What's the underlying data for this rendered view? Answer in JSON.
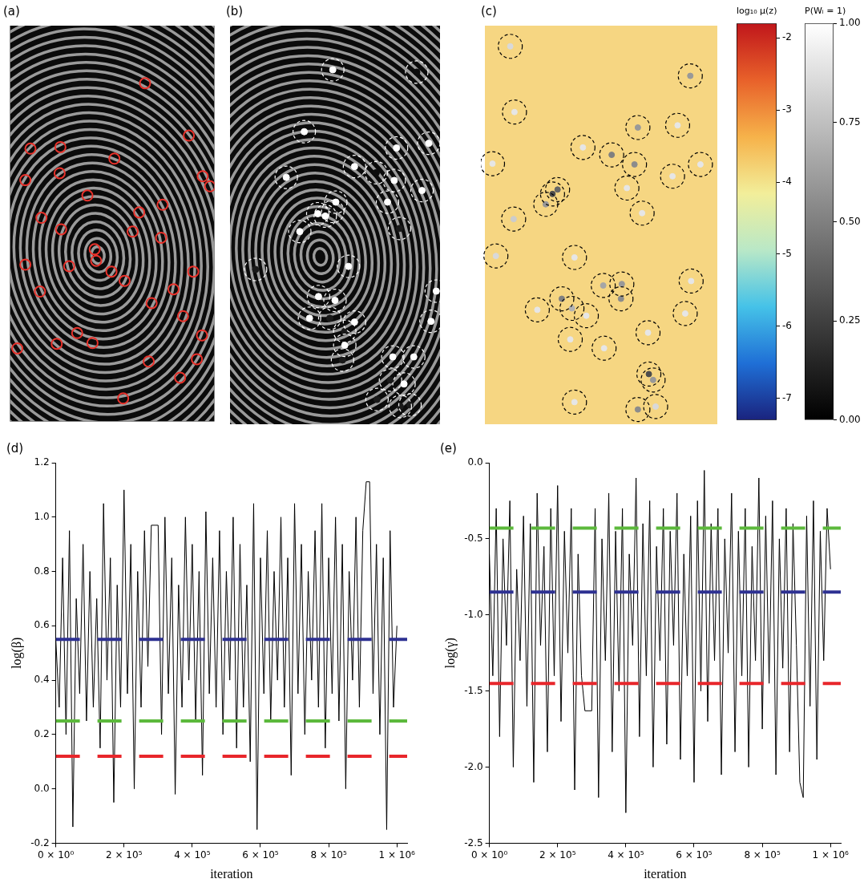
{
  "chart_data": [
    {
      "type": "scatter",
      "title": "(a)",
      "tick_labels": false,
      "grid": false,
      "xlim": [
        0,
        280
      ],
      "ylim": [
        515,
        0
      ],
      "series": [
        {
          "color": "#e8312a",
          "marker": "ring",
          "x": [
            185,
            28,
            69,
            21,
            68,
            143,
            245,
            264,
            274,
            106,
            209,
            177,
            43,
            70,
            168,
            207,
            116,
            118,
            21,
            81,
            139,
            251,
            157,
            41,
            224,
            194,
            237,
            10,
            64,
            92,
            113,
            190,
            263,
            256,
            233,
            155
          ],
          "values": [
            75,
            160,
            158,
            201,
            192,
            173,
            143,
            196,
            209,
            221,
            233,
            243,
            250,
            265,
            268,
            276,
            291,
            306,
            311,
            313,
            320,
            320,
            332,
            346,
            343,
            361,
            378,
            420,
            414,
            400,
            413,
            437,
            403,
            434,
            458,
            485
          ]
        }
      ]
    },
    {
      "type": "scatter",
      "title": "(b)",
      "tick_labels": false,
      "grid": false,
      "xlim": [
        0,
        280
      ],
      "ylim": [
        515,
        0
      ],
      "series": [
        {
          "color": "#ffffff",
          "marker": "dot",
          "x": [
            137,
            249,
            99,
            222,
            265,
            166,
            195,
            219,
            256,
            75,
            141,
            137,
            127,
            117,
            210,
            226,
            93,
            158,
            34,
            275,
            118,
            140,
            133,
            166,
            153,
            268,
            153,
            217,
            150,
            245,
            214,
            232,
            240,
            227,
            196,
            106
          ],
          "values": [
            57,
            60,
            137,
            158,
            152,
            182,
            190,
            200,
            213,
            196,
            228,
            240,
            246,
            243,
            228,
            262,
            266,
            311,
            315,
            343,
            350,
            355,
            378,
            383,
            395,
            382,
            413,
            428,
            432,
            428,
            458,
            463,
            490,
            492,
            483,
            378
          ],
          "p": [
            1,
            0.05,
            1,
            1,
            1,
            1,
            0.05,
            1,
            1,
            1,
            1,
            0.1,
            1,
            1,
            1,
            0.1,
            1,
            1,
            0.1,
            1,
            1,
            1,
            0.1,
            1,
            0.1,
            1,
            1,
            1,
            0.1,
            1,
            0.1,
            1,
            0.1,
            0.1,
            0.1,
            1
          ]
        }
      ]
    },
    {
      "type": "scatter",
      "title": "(c)",
      "tick_labels": false,
      "grid": false,
      "xlim": [
        0,
        275
      ],
      "ylim": [
        540,
        0
      ],
      "series": [
        {
          "color": "#000000",
          "marker": "dot",
          "x": [
            30,
            243,
            35,
            181,
            228,
            116,
            150,
            177,
            9,
            255,
            222,
            168,
            86,
            80,
            72,
            34,
            186,
            13,
            106,
            244,
            140,
            162,
            161,
            91,
            62,
            103,
            120,
            237,
            101,
            193,
            141,
            194,
            199,
            106,
            181,
            202
          ],
          "values": [
            28,
            68,
            117,
            138,
            135,
            165,
            175,
            188,
            187,
            188,
            204,
            220,
            222,
            228,
            242,
            262,
            254,
            312,
            314,
            346,
            352,
            350,
            370,
            370,
            385,
            383,
            393,
            390,
            425,
            416,
            437,
            472,
            480,
            510,
            520,
            516
          ],
          "p": [
            0.85,
            0.6,
            0.9,
            0.6,
            0.9,
            0.9,
            0.5,
            0.55,
            0.9,
            0.9,
            0.9,
            0.9,
            0.4,
            0.3,
            0.6,
            0.8,
            0.9,
            0.85,
            0.9,
            0.9,
            0.65,
            0.6,
            0.55,
            0.5,
            0.9,
            0.7,
            0.9,
            0.9,
            0.9,
            0.9,
            0.9,
            0.3,
            0.6,
            0.9,
            0.55,
            0.85
          ]
        }
      ]
    },
    {
      "type": "colorbar",
      "title": "log₁₀ μ(z)",
      "ylim": [
        -7.3,
        -1.8
      ],
      "yticks": [
        -7,
        -6,
        -5,
        -4,
        -3,
        -2
      ],
      "colors": [
        "#1a237e",
        "#1f6fd6",
        "#45c2e8",
        "#b9e8c7",
        "#f2ee9a",
        "#f6b24a",
        "#e8612a",
        "#c0161b"
      ]
    },
    {
      "type": "colorbar",
      "title": "P(Wᵢ = 1)",
      "ylim": [
        0,
        1
      ],
      "yticks": [
        {
          "value": 0,
          "label": "0.00"
        },
        {
          "value": 0.25,
          "label": "0.25"
        },
        {
          "value": 0.5,
          "label": "0.50"
        },
        {
          "value": 0.75,
          "label": "0.75"
        },
        {
          "value": 1,
          "label": "1.00"
        }
      ],
      "colors": [
        "#000000",
        "#ffffff"
      ]
    },
    {
      "type": "line",
      "title": "(d)",
      "x_label": "iteration",
      "y_label": "log(β)",
      "grid": false,
      "xlim": [
        0,
        1030000
      ],
      "xticks": [
        {
          "value": 0,
          "label": "0 × 10⁰"
        },
        {
          "value": 200000,
          "label": "2 × 10⁵"
        },
        {
          "value": 400000,
          "label": "4 × 10⁵"
        },
        {
          "value": 600000,
          "label": "6 × 10⁵"
        },
        {
          "value": 800000,
          "label": "8 × 10⁵"
        },
        {
          "value": 1000000,
          "label": "1 × 10⁶"
        }
      ],
      "ylim": [
        -0.2,
        1.2
      ],
      "yticks": [
        -0.2,
        {
          "value": 0,
          "label": "0.0"
        },
        0.2,
        0.4,
        0.6,
        0.8,
        {
          "value": 1,
          "label": "1.0"
        },
        1.2
      ],
      "x": [
        0,
        10000,
        20000,
        30000,
        40000,
        50000,
        60000,
        70000,
        80000,
        90000,
        100000,
        110000,
        120000,
        130000,
        140000,
        150000,
        160000,
        170000,
        180000,
        190000,
        200000,
        210000,
        220000,
        230000,
        240000,
        250000,
        260000,
        270000,
        280000,
        290000,
        300000,
        310000,
        320000,
        330000,
        340000,
        350000,
        360000,
        370000,
        380000,
        390000,
        400000,
        410000,
        420000,
        430000,
        440000,
        450000,
        460000,
        470000,
        480000,
        490000,
        500000,
        510000,
        520000,
        530000,
        540000,
        550000,
        560000,
        570000,
        580000,
        590000,
        600000,
        610000,
        620000,
        630000,
        640000,
        650000,
        660000,
        670000,
        680000,
        690000,
        700000,
        710000,
        720000,
        730000,
        740000,
        750000,
        760000,
        770000,
        780000,
        790000,
        800000,
        810000,
        820000,
        830000,
        840000,
        850000,
        860000,
        870000,
        880000,
        890000,
        900000,
        910000,
        920000,
        930000,
        940000,
        950000,
        960000,
        970000,
        980000,
        990000,
        1000000
      ],
      "series": [
        {
          "color": "#000000",
          "line_style": "solid",
          "values": [
            0.55,
            0.3,
            0.85,
            0.2,
            0.95,
            -0.14,
            0.7,
            0.35,
            0.9,
            0.25,
            0.8,
            0.3,
            0.7,
            0.15,
            1.05,
            0.4,
            0.85,
            -0.05,
            0.75,
            0.3,
            1.1,
            0.35,
            0.9,
            0.0,
            0.8,
            0.3,
            0.95,
            0.45,
            0.97,
            0.97,
            0.97,
            0.2,
            1.0,
            0.35,
            0.85,
            -0.02,
            0.75,
            0.3,
            1.0,
            0.4,
            0.9,
            0.25,
            0.8,
            0.05,
            1.02,
            0.35,
            0.85,
            0.3,
            0.95,
            0.2,
            0.8,
            0.4,
            1.0,
            0.15,
            0.9,
            0.3,
            0.75,
            0.1,
            1.05,
            -0.15,
            0.85,
            0.35,
            0.95,
            0.25,
            0.8,
            0.4,
            1.0,
            0.3,
            0.85,
            0.05,
            1.05,
            0.35,
            0.9,
            0.2,
            0.8,
            0.4,
            0.95,
            0.3,
            1.05,
            0.15,
            0.85,
            0.35,
            1.0,
            0.25,
            0.9,
            0.0,
            0.8,
            0.4,
            1.0,
            0.3,
            0.95,
            1.13,
            1.13,
            0.35,
            0.9,
            0.2,
            0.85,
            -0.15,
            0.95,
            0.3,
            0.6
          ]
        }
      ],
      "reference_lines": [
        {
          "value": 0.55,
          "color": "#2e3192",
          "line_style": "dashed"
        },
        {
          "value": 0.25,
          "color": "#5cb93c",
          "line_style": "dashed"
        },
        {
          "value": 0.12,
          "color": "#e8262b",
          "line_style": "dashed"
        }
      ]
    },
    {
      "type": "line",
      "title": "(e)",
      "x_label": "iteration",
      "y_label": "log(γ)",
      "grid": false,
      "xlim": [
        0,
        1030000
      ],
      "xticks": [
        {
          "value": 0,
          "label": "0 × 10⁰"
        },
        {
          "value": 200000,
          "label": "2 × 10⁵"
        },
        {
          "value": 400000,
          "label": "4 × 10⁵"
        },
        {
          "value": 600000,
          "label": "6 × 10⁵"
        },
        {
          "value": 800000,
          "label": "8 × 10⁵"
        },
        {
          "value": 1000000,
          "label": "1 × 10⁶"
        }
      ],
      "ylim": [
        -2.5,
        0
      ],
      "yticks": [
        -2.5,
        {
          "value": -2,
          "label": "-2.0"
        },
        -1.5,
        {
          "value": -1,
          "label": "-1.0"
        },
        -0.5,
        {
          "value": 0,
          "label": "0.0"
        }
      ],
      "x": [
        0,
        10000,
        20000,
        30000,
        40000,
        50000,
        60000,
        70000,
        80000,
        90000,
        100000,
        110000,
        120000,
        130000,
        140000,
        150000,
        160000,
        170000,
        180000,
        190000,
        200000,
        210000,
        220000,
        230000,
        240000,
        250000,
        260000,
        270000,
        280000,
        290000,
        300000,
        310000,
        320000,
        330000,
        340000,
        350000,
        360000,
        370000,
        380000,
        390000,
        400000,
        410000,
        420000,
        430000,
        440000,
        450000,
        460000,
        470000,
        480000,
        490000,
        500000,
        510000,
        520000,
        530000,
        540000,
        550000,
        560000,
        570000,
        580000,
        590000,
        600000,
        610000,
        620000,
        630000,
        640000,
        650000,
        660000,
        670000,
        680000,
        690000,
        700000,
        710000,
        720000,
        730000,
        740000,
        750000,
        760000,
        770000,
        780000,
        790000,
        800000,
        810000,
        820000,
        830000,
        840000,
        850000,
        860000,
        870000,
        880000,
        890000,
        900000,
        910000,
        920000,
        930000,
        940000,
        950000,
        960000,
        970000,
        980000,
        990000,
        1000000
      ],
      "series": [
        {
          "color": "#000000",
          "line_style": "solid",
          "values": [
            -0.6,
            -1.4,
            -0.3,
            -1.8,
            -0.5,
            -1.2,
            -0.25,
            -2.0,
            -0.7,
            -1.3,
            -0.35,
            -1.6,
            -0.4,
            -2.1,
            -0.2,
            -1.2,
            -0.55,
            -1.9,
            -0.3,
            -1.4,
            -0.15,
            -1.7,
            -0.45,
            -1.25,
            -0.3,
            -2.15,
            -0.6,
            -1.4,
            -1.63,
            -1.63,
            -1.63,
            -0.3,
            -2.2,
            -0.5,
            -1.3,
            -0.2,
            -1.9,
            -0.45,
            -1.5,
            -0.3,
            -2.3,
            -0.6,
            -1.2,
            -0.1,
            -1.8,
            -0.4,
            -1.4,
            -0.25,
            -2.0,
            -0.55,
            -1.3,
            -0.3,
            -1.85,
            -0.45,
            -1.2,
            -0.2,
            -1.95,
            -0.6,
            -1.4,
            -0.35,
            -2.1,
            -0.25,
            -1.5,
            -0.05,
            -1.7,
            -0.4,
            -1.3,
            -0.3,
            -2.05,
            -0.5,
            -1.25,
            -0.2,
            -1.9,
            -0.45,
            -1.4,
            -0.3,
            -2.0,
            -0.55,
            -1.3,
            -0.1,
            -1.75,
            -0.35,
            -1.45,
            -0.25,
            -2.05,
            -0.5,
            -1.35,
            -0.3,
            -1.9,
            -0.4,
            -1.2,
            -2.1,
            -2.2,
            -0.35,
            -1.6,
            -0.25,
            -1.95,
            -0.45,
            -1.3,
            -0.3,
            -0.7
          ]
        }
      ],
      "reference_lines": [
        {
          "value": -0.43,
          "color": "#5cb93c",
          "line_style": "dashed"
        },
        {
          "value": -0.85,
          "color": "#2e3192",
          "line_style": "dashed"
        },
        {
          "value": -1.45,
          "color": "#e8262b",
          "line_style": "dashed"
        }
      ]
    }
  ]
}
